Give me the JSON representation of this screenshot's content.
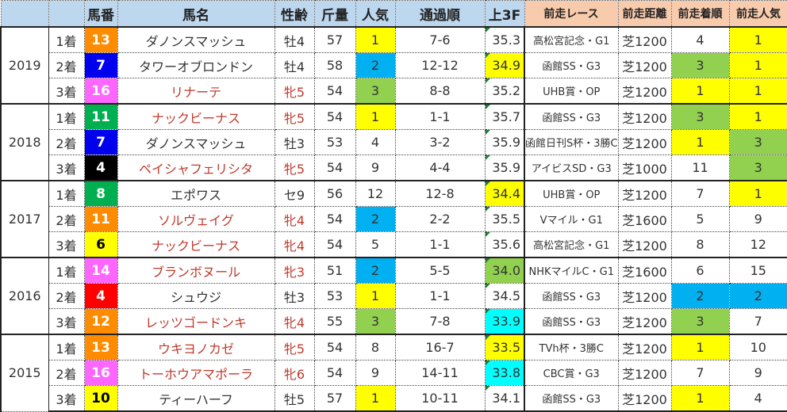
{
  "headers": [
    "",
    "",
    "馬番",
    "馬名",
    "性齢",
    "斤量",
    "人気",
    "通過順",
    "上3F",
    "前走レース",
    "前走距離",
    "前走着順",
    "前走人気"
  ],
  "colors": {
    "yellow": "#ffff00",
    "blue": "#00b0f0",
    "green": "#92d050",
    "cyan": "#00ffff",
    "orange": "#ff8c00",
    "navy": "#0000ee",
    "pink": "#ff66ff",
    "frame_green": "#00b050",
    "black": "#000000",
    "red": "#ff0000",
    "frame_yellow": "#ffff00"
  },
  "groups": [
    {
      "year": "2019",
      "rows": [
        {
          "place": "1着",
          "num": "13",
          "numColor": "orange",
          "name": "ダノンスマッシュ",
          "mare": false,
          "sex": "牡4",
          "weight": "57",
          "pop": "1",
          "popColor": "yellow",
          "pass": "7-6",
          "f3": "35.3",
          "f3Color": "",
          "race": "高松宮記念・G1",
          "dist": "芝1200",
          "pplace": "4",
          "pplaceColor": "",
          "ppop": "1",
          "ppopColor": "yellow"
        },
        {
          "place": "2着",
          "num": "7",
          "numColor": "navy",
          "name": "タワーオブロンドン",
          "mare": false,
          "sex": "牡4",
          "weight": "58",
          "pop": "2",
          "popColor": "blue",
          "pass": "12-12",
          "f3": "34.9",
          "f3Color": "yellow",
          "race": "函館SS・G3",
          "dist": "芝1200",
          "pplace": "3",
          "pplaceColor": "green",
          "ppop": "1",
          "ppopColor": "yellow"
        },
        {
          "place": "3着",
          "num": "16",
          "numColor": "pink",
          "name": "リナーテ",
          "mare": true,
          "sex": "牝5",
          "weight": "54",
          "pop": "3",
          "popColor": "green",
          "pass": "8-8",
          "f3": "35.2",
          "f3Color": "",
          "race": "UHB賞・OP",
          "dist": "芝1200",
          "pplace": "1",
          "pplaceColor": "yellow",
          "ppop": "1",
          "ppopColor": "yellow"
        }
      ]
    },
    {
      "year": "2018",
      "rows": [
        {
          "place": "1着",
          "num": "11",
          "numColor": "frame_green",
          "name": "ナックビーナス",
          "mare": true,
          "sex": "牝5",
          "weight": "54",
          "pop": "1",
          "popColor": "yellow",
          "pass": "1-1",
          "f3": "35.7",
          "f3Color": "",
          "race": "函館SS・G3",
          "dist": "芝1200",
          "pplace": "3",
          "pplaceColor": "green",
          "ppop": "1",
          "ppopColor": "yellow"
        },
        {
          "place": "2着",
          "num": "7",
          "numColor": "navy",
          "name": "ダノンスマッシュ",
          "mare": false,
          "sex": "牡3",
          "weight": "53",
          "pop": "4",
          "popColor": "",
          "pass": "3-2",
          "f3": "35.9",
          "f3Color": "",
          "race": "函館日刊S杯・3勝C",
          "dist": "芝1200",
          "pplace": "1",
          "pplaceColor": "yellow",
          "ppop": "3",
          "ppopColor": "green"
        },
        {
          "place": "3着",
          "num": "4",
          "numColor": "black",
          "name": "ペイシャフェリシタ",
          "mare": true,
          "sex": "牝5",
          "weight": "54",
          "pop": "9",
          "popColor": "",
          "pass": "4-4",
          "f3": "35.9",
          "f3Color": "",
          "race": "アイビスSD・G3",
          "dist": "芝1000",
          "pplace": "11",
          "pplaceColor": "",
          "ppop": "3",
          "ppopColor": "green"
        }
      ]
    },
    {
      "year": "2017",
      "rows": [
        {
          "place": "1着",
          "num": "8",
          "numColor": "frame_green",
          "name": "エポワス",
          "mare": false,
          "sex": "セ9",
          "weight": "56",
          "pop": "12",
          "popColor": "",
          "pass": "12-8",
          "f3": "34.4",
          "f3Color": "yellow",
          "race": "UHB賞・OP",
          "dist": "芝1200",
          "pplace": "7",
          "pplaceColor": "",
          "ppop": "1",
          "ppopColor": "yellow"
        },
        {
          "place": "2着",
          "num": "11",
          "numColor": "orange",
          "name": "ソルヴェイグ",
          "mare": true,
          "sex": "牝4",
          "weight": "54",
          "pop": "2",
          "popColor": "blue",
          "pass": "2-2",
          "f3": "35.5",
          "f3Color": "",
          "race": "Vマイル・G1",
          "dist": "芝1600",
          "pplace": "5",
          "pplaceColor": "",
          "ppop": "9",
          "ppopColor": ""
        },
        {
          "place": "3着",
          "num": "6",
          "numColor": "frame_yellow",
          "name": "ナックビーナス",
          "mare": true,
          "sex": "牝4",
          "weight": "54",
          "pop": "5",
          "popColor": "",
          "pass": "1-1",
          "f3": "35.6",
          "f3Color": "",
          "race": "高松宮記念・G1",
          "dist": "芝1200",
          "pplace": "8",
          "pplaceColor": "",
          "ppop": "12",
          "ppopColor": ""
        }
      ]
    },
    {
      "year": "2016",
      "rows": [
        {
          "place": "1着",
          "num": "14",
          "numColor": "pink",
          "name": "ブランボヌール",
          "mare": true,
          "sex": "牝3",
          "weight": "51",
          "pop": "2",
          "popColor": "blue",
          "pass": "5-5",
          "f3": "34.0",
          "f3Color": "green",
          "race": "NHKマイルC・G1",
          "dist": "芝1600",
          "pplace": "6",
          "pplaceColor": "",
          "ppop": "15",
          "ppopColor": ""
        },
        {
          "place": "2着",
          "num": "4",
          "numColor": "red",
          "name": "シュウジ",
          "mare": false,
          "sex": "牡3",
          "weight": "53",
          "pop": "1",
          "popColor": "yellow",
          "pass": "1-1",
          "f3": "34.5",
          "f3Color": "",
          "race": "函館SS・G3",
          "dist": "芝1200",
          "pplace": "2",
          "pplaceColor": "blue",
          "ppop": "2",
          "ppopColor": "blue"
        },
        {
          "place": "3着",
          "num": "12",
          "numColor": "orange",
          "name": "レッツゴードンキ",
          "mare": true,
          "sex": "牝4",
          "weight": "55",
          "pop": "3",
          "popColor": "green",
          "pass": "7-8",
          "f3": "33.9",
          "f3Color": "cyan",
          "race": "函館SS・G3",
          "dist": "芝1200",
          "pplace": "3",
          "pplaceColor": "green",
          "ppop": "7",
          "ppopColor": ""
        }
      ]
    },
    {
      "year": "2015",
      "rows": [
        {
          "place": "1着",
          "num": "13",
          "numColor": "orange",
          "name": "ウキヨノカゼ",
          "mare": true,
          "sex": "牝5",
          "weight": "54",
          "pop": "8",
          "popColor": "",
          "pass": "16-7",
          "f3": "33.5",
          "f3Color": "yellow",
          "race": "TVh杯・3勝C",
          "dist": "芝1200",
          "pplace": "1",
          "pplaceColor": "yellow",
          "ppop": "10",
          "ppopColor": ""
        },
        {
          "place": "2着",
          "num": "16",
          "numColor": "pink",
          "name": "トーホウアマポーラ",
          "mare": true,
          "sex": "牝6",
          "weight": "54",
          "pop": "9",
          "popColor": "",
          "pass": "14-11",
          "f3": "33.8",
          "f3Color": "cyan",
          "race": "CBC賞・G3",
          "dist": "芝1200",
          "pplace": "7",
          "pplaceColor": "",
          "ppop": "9",
          "ppopColor": ""
        },
        {
          "place": "3着",
          "num": "10",
          "numColor": "frame_yellow",
          "name": "ティーハーフ",
          "mare": false,
          "sex": "牡5",
          "weight": "57",
          "pop": "1",
          "popColor": "yellow",
          "pass": "10-11",
          "f3": "34.1",
          "f3Color": "",
          "race": "函館SS・G3",
          "dist": "芝1200",
          "pplace": "1",
          "pplaceColor": "yellow",
          "ppop": "4",
          "ppopColor": ""
        }
      ]
    }
  ]
}
